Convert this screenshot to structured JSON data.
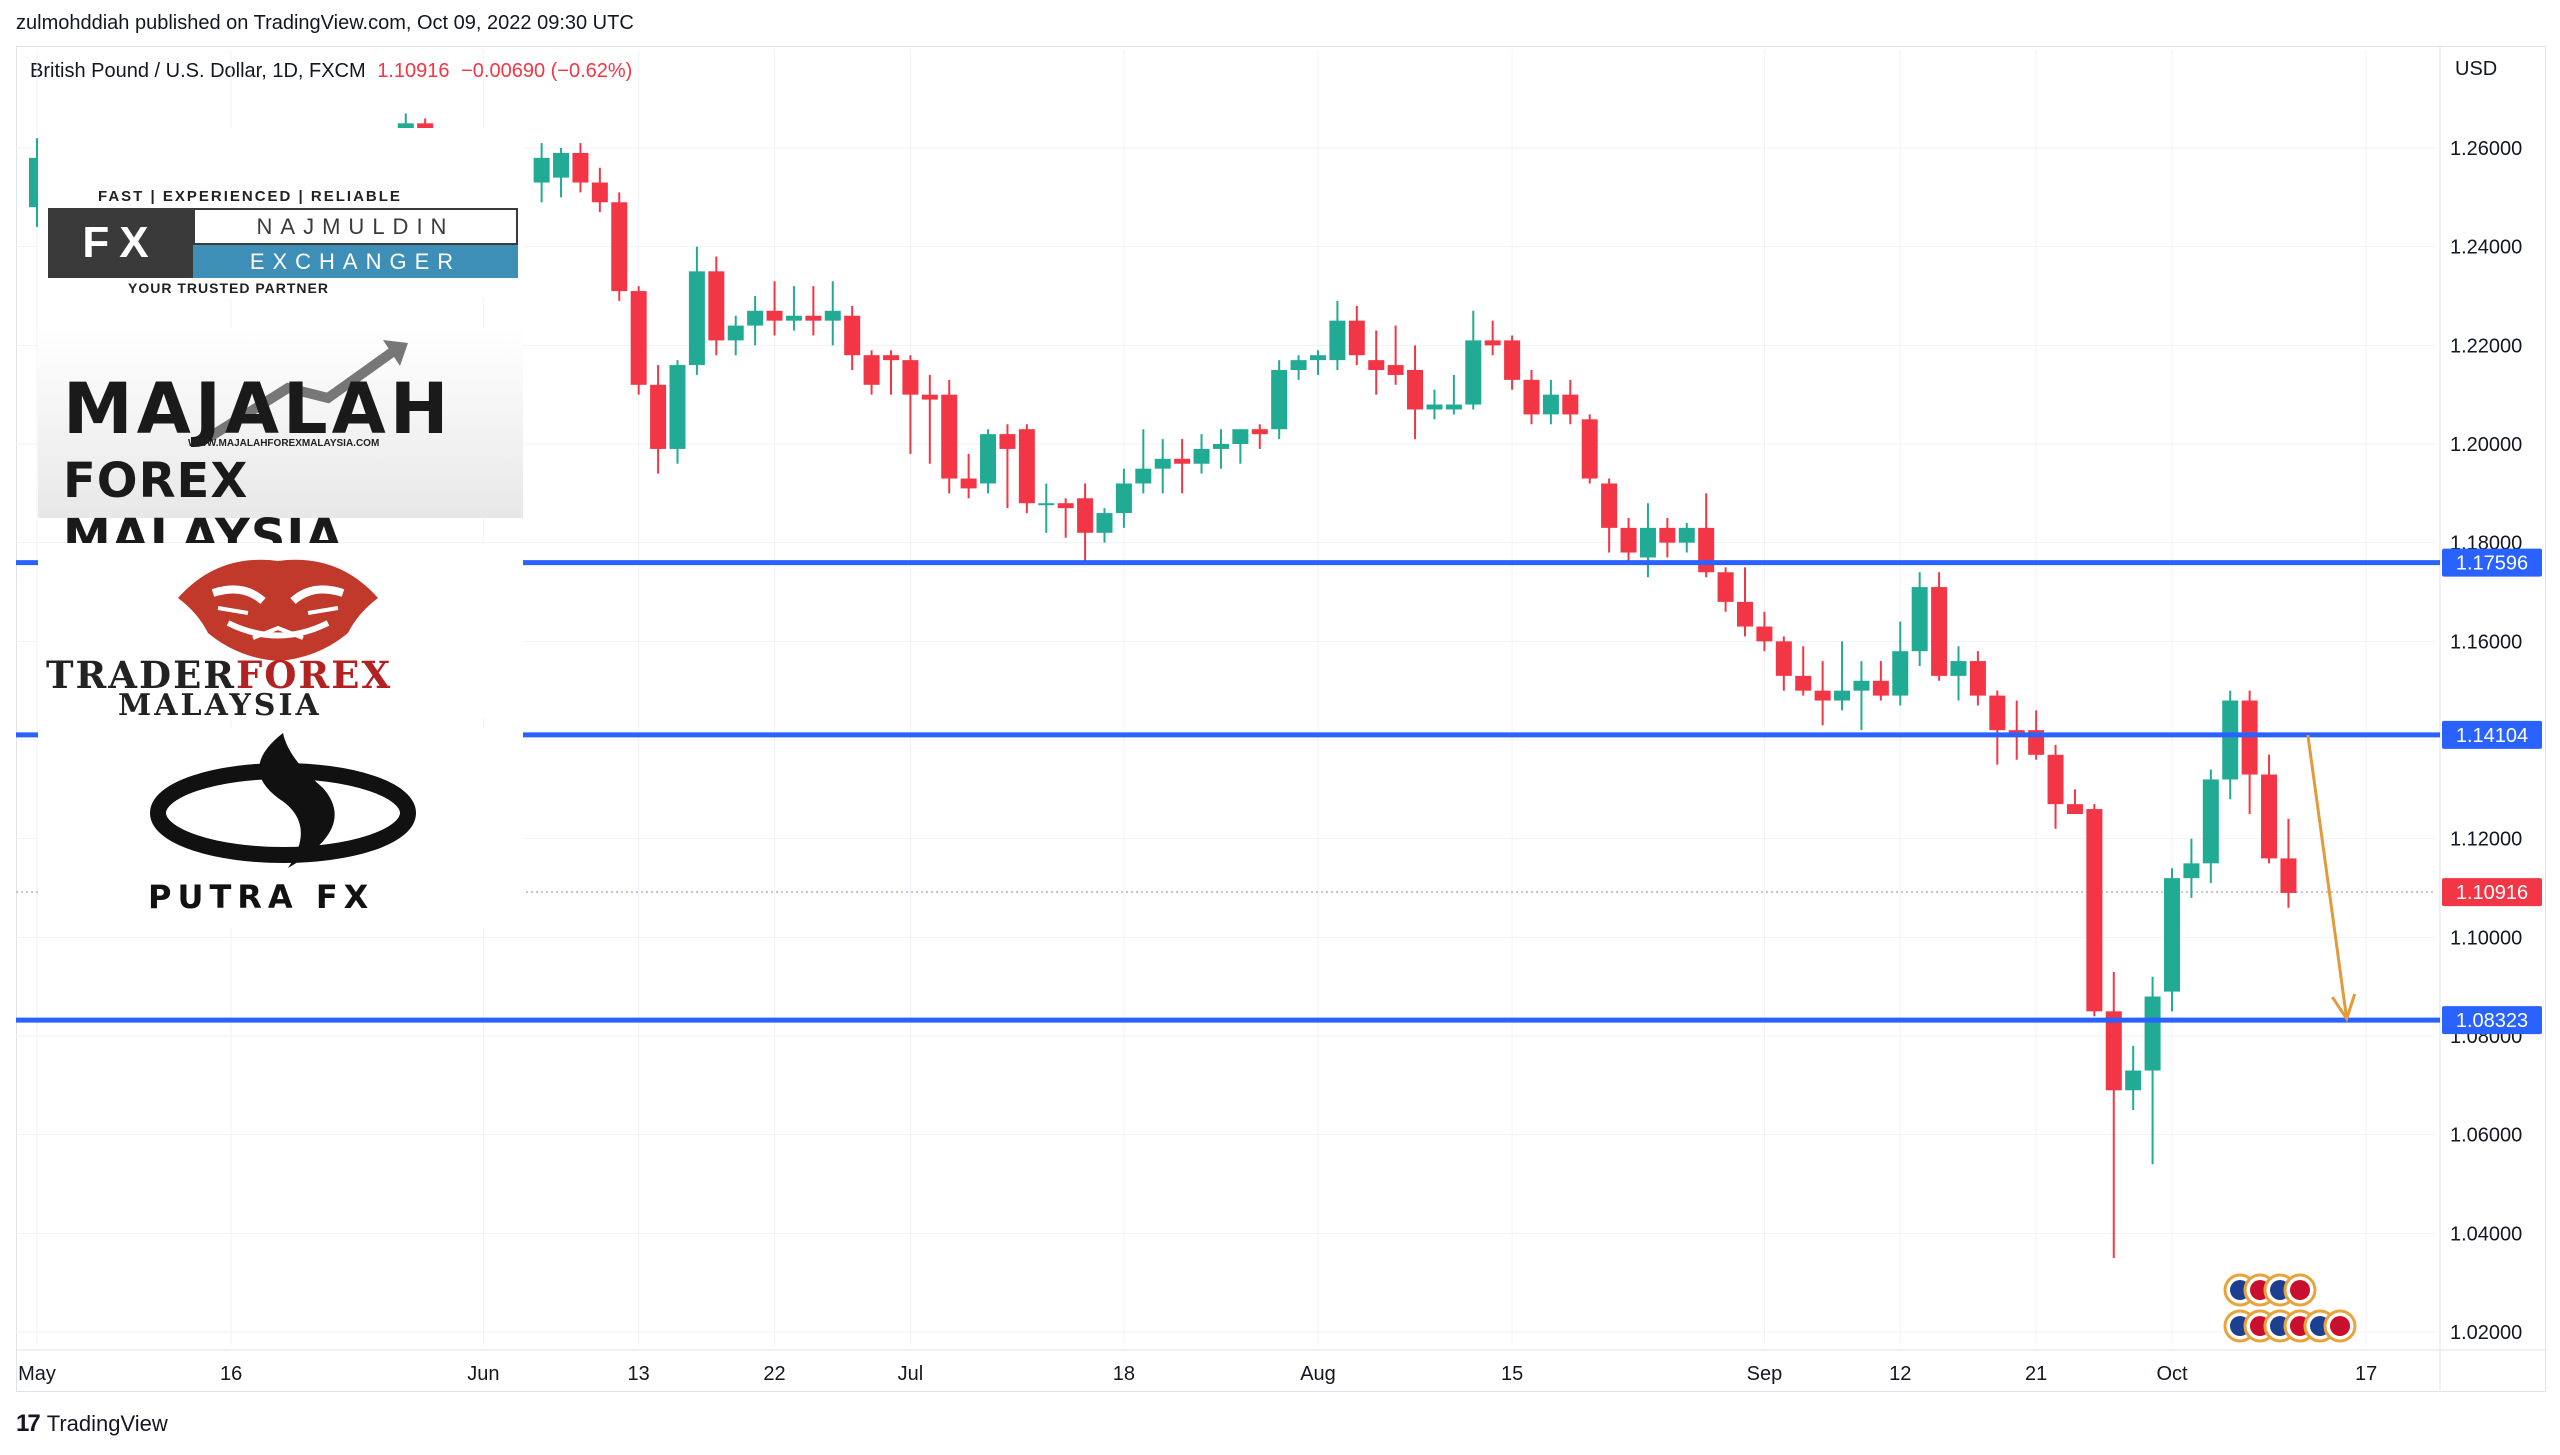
{
  "publisher": "zulmohddiah published on TradingView.com, Oct 09, 2022 09:30 UTC",
  "symbol": {
    "name": "British Pound / U.S. Dollar, 1D, FXCM",
    "price": "1.10916",
    "change": "−0.00690 (−0.62%)"
  },
  "currency": "USD",
  "footer": {
    "brand": "TradingView",
    "logo_text": "17"
  },
  "colors": {
    "up": "#22ab94",
    "down": "#f23645",
    "level": "#2962ff",
    "arrow": "#e39a3b",
    "grid": "#f0f3fa"
  },
  "logos": {
    "fx": {
      "tagline": "FAST | EXPERIENCED | RELIABLE",
      "mark": "FX",
      "name_top": "NAJMULDIN",
      "name_bottom": "EXCHANGER",
      "sub": "YOUR TRUSTED PARTNER"
    },
    "majalah": {
      "top": "MAJALAH",
      "url": "WWW.MAJALAHFOREXMALAYSIA.COM",
      "bottom": "FOREX  MALAYSIA"
    },
    "trader": {
      "line1a": "TRADER",
      "line1b": "FOREX",
      "line2": "MALAYSIA"
    },
    "putra": {
      "text": "PUTRA FX"
    }
  },
  "chart_data": {
    "type": "candlestick",
    "ylim": [
      1.018,
      1.273
    ],
    "y_ticks": [
      "1.26000",
      "1.24000",
      "1.22000",
      "1.20000",
      "1.18000",
      "1.16000",
      "1.14000",
      "1.12000",
      "1.10000",
      "1.08000",
      "1.06000",
      "1.04000",
      "1.02000"
    ],
    "x_ticks": [
      {
        "label": "May",
        "i": 0
      },
      {
        "label": "16",
        "i": 10
      },
      {
        "label": "Jun",
        "i": 23
      },
      {
        "label": "13",
        "i": 31
      },
      {
        "label": "22",
        "i": 38
      },
      {
        "label": "Jul",
        "i": 45
      },
      {
        "label": "18",
        "i": 56
      },
      {
        "label": "Aug",
        "i": 66
      },
      {
        "label": "15",
        "i": 76
      },
      {
        "label": "Sep",
        "i": 89
      },
      {
        "label": "12",
        "i": 96
      },
      {
        "label": "21",
        "i": 103
      },
      {
        "label": "Oct",
        "i": 110
      },
      {
        "label": "17",
        "i": 120
      }
    ],
    "horizontal_levels": [
      {
        "value": 1.17596,
        "label": "1.17596"
      },
      {
        "value": 1.14104,
        "label": "1.14104"
      },
      {
        "value": 1.08323,
        "label": "1.08323"
      }
    ],
    "last_price": {
      "value": 1.10916,
      "label": "1.10916"
    },
    "projection_arrow": {
      "from_i": 117,
      "from_price": 1.141,
      "to_i": 119,
      "to_price": 1.0835
    },
    "candles": [
      {
        "i": 0,
        "o": 1.248,
        "h": 1.262,
        "l": 1.244,
        "c": 1.258
      },
      {
        "i": 1,
        "o": 1.258,
        "h": 1.264,
        "l": 1.252,
        "c": 1.255
      },
      {
        "i": 19,
        "o": 1.26,
        "h": 1.267,
        "l": 1.256,
        "c": 1.265
      },
      {
        "i": 20,
        "o": 1.265,
        "h": 1.266,
        "l": 1.26,
        "c": 1.263
      },
      {
        "i": 26,
        "o": 1.253,
        "h": 1.261,
        "l": 1.249,
        "c": 1.258
      },
      {
        "i": 27,
        "o": 1.254,
        "h": 1.26,
        "l": 1.25,
        "c": 1.259
      },
      {
        "i": 28,
        "o": 1.259,
        "h": 1.261,
        "l": 1.251,
        "c": 1.253
      },
      {
        "i": 29,
        "o": 1.253,
        "h": 1.256,
        "l": 1.247,
        "c": 1.249
      },
      {
        "i": 30,
        "o": 1.249,
        "h": 1.251,
        "l": 1.229,
        "c": 1.231
      },
      {
        "i": 31,
        "o": 1.231,
        "h": 1.232,
        "l": 1.21,
        "c": 1.212
      },
      {
        "i": 32,
        "o": 1.212,
        "h": 1.216,
        "l": 1.194,
        "c": 1.199
      },
      {
        "i": 33,
        "o": 1.199,
        "h": 1.217,
        "l": 1.196,
        "c": 1.216
      },
      {
        "i": 34,
        "o": 1.216,
        "h": 1.24,
        "l": 1.214,
        "c": 1.235
      },
      {
        "i": 35,
        "o": 1.235,
        "h": 1.238,
        "l": 1.218,
        "c": 1.221
      },
      {
        "i": 36,
        "o": 1.221,
        "h": 1.226,
        "l": 1.218,
        "c": 1.224
      },
      {
        "i": 37,
        "o": 1.224,
        "h": 1.23,
        "l": 1.22,
        "c": 1.227
      },
      {
        "i": 38,
        "o": 1.227,
        "h": 1.233,
        "l": 1.222,
        "c": 1.225
      },
      {
        "i": 39,
        "o": 1.225,
        "h": 1.232,
        "l": 1.223,
        "c": 1.226
      },
      {
        "i": 40,
        "o": 1.226,
        "h": 1.232,
        "l": 1.222,
        "c": 1.225
      },
      {
        "i": 41,
        "o": 1.225,
        "h": 1.233,
        "l": 1.22,
        "c": 1.227
      },
      {
        "i": 42,
        "o": 1.226,
        "h": 1.228,
        "l": 1.215,
        "c": 1.218
      },
      {
        "i": 43,
        "o": 1.218,
        "h": 1.219,
        "l": 1.21,
        "c": 1.212
      },
      {
        "i": 44,
        "o": 1.218,
        "h": 1.219,
        "l": 1.21,
        "c": 1.217
      },
      {
        "i": 45,
        "o": 1.217,
        "h": 1.218,
        "l": 1.198,
        "c": 1.21
      },
      {
        "i": 46,
        "o": 1.21,
        "h": 1.214,
        "l": 1.196,
        "c": 1.209
      },
      {
        "i": 47,
        "o": 1.21,
        "h": 1.213,
        "l": 1.19,
        "c": 1.193
      },
      {
        "i": 48,
        "o": 1.193,
        "h": 1.198,
        "l": 1.189,
        "c": 1.191
      },
      {
        "i": 49,
        "o": 1.192,
        "h": 1.203,
        "l": 1.19,
        "c": 1.202
      },
      {
        "i": 50,
        "o": 1.202,
        "h": 1.204,
        "l": 1.187,
        "c": 1.199
      },
      {
        "i": 51,
        "o": 1.203,
        "h": 1.204,
        "l": 1.186,
        "c": 1.188
      },
      {
        "i": 52,
        "o": 1.188,
        "h": 1.192,
        "l": 1.182,
        "c": 1.188
      },
      {
        "i": 53,
        "o": 1.188,
        "h": 1.189,
        "l": 1.181,
        "c": 1.187
      },
      {
        "i": 54,
        "o": 1.189,
        "h": 1.192,
        "l": 1.176,
        "c": 1.182
      },
      {
        "i": 55,
        "o": 1.182,
        "h": 1.187,
        "l": 1.18,
        "c": 1.186
      },
      {
        "i": 56,
        "o": 1.186,
        "h": 1.195,
        "l": 1.183,
        "c": 1.192
      },
      {
        "i": 57,
        "o": 1.192,
        "h": 1.203,
        "l": 1.19,
        "c": 1.195
      },
      {
        "i": 58,
        "o": 1.195,
        "h": 1.201,
        "l": 1.19,
        "c": 1.197
      },
      {
        "i": 59,
        "o": 1.197,
        "h": 1.201,
        "l": 1.19,
        "c": 1.196
      },
      {
        "i": 60,
        "o": 1.196,
        "h": 1.202,
        "l": 1.194,
        "c": 1.199
      },
      {
        "i": 61,
        "o": 1.199,
        "h": 1.203,
        "l": 1.195,
        "c": 1.2
      },
      {
        "i": 62,
        "o": 1.2,
        "h": 1.203,
        "l": 1.196,
        "c": 1.203
      },
      {
        "i": 63,
        "o": 1.203,
        "h": 1.204,
        "l": 1.199,
        "c": 1.202
      },
      {
        "i": 64,
        "o": 1.203,
        "h": 1.217,
        "l": 1.201,
        "c": 1.215
      },
      {
        "i": 65,
        "o": 1.215,
        "h": 1.218,
        "l": 1.213,
        "c": 1.217
      },
      {
        "i": 66,
        "o": 1.217,
        "h": 1.219,
        "l": 1.214,
        "c": 1.218
      },
      {
        "i": 67,
        "o": 1.217,
        "h": 1.229,
        "l": 1.215,
        "c": 1.225
      },
      {
        "i": 68,
        "o": 1.225,
        "h": 1.228,
        "l": 1.216,
        "c": 1.218
      },
      {
        "i": 69,
        "o": 1.217,
        "h": 1.223,
        "l": 1.21,
        "c": 1.215
      },
      {
        "i": 70,
        "o": 1.216,
        "h": 1.224,
        "l": 1.212,
        "c": 1.214
      },
      {
        "i": 71,
        "o": 1.215,
        "h": 1.22,
        "l": 1.201,
        "c": 1.207
      },
      {
        "i": 72,
        "o": 1.207,
        "h": 1.211,
        "l": 1.205,
        "c": 1.208
      },
      {
        "i": 73,
        "o": 1.207,
        "h": 1.214,
        "l": 1.206,
        "c": 1.208
      },
      {
        "i": 74,
        "o": 1.208,
        "h": 1.227,
        "l": 1.207,
        "c": 1.221
      },
      {
        "i": 75,
        "o": 1.221,
        "h": 1.225,
        "l": 1.218,
        "c": 1.22
      },
      {
        "i": 76,
        "o": 1.221,
        "h": 1.222,
        "l": 1.211,
        "c": 1.213
      },
      {
        "i": 77,
        "o": 1.213,
        "h": 1.215,
        "l": 1.204,
        "c": 1.206
      },
      {
        "i": 78,
        "o": 1.206,
        "h": 1.213,
        "l": 1.204,
        "c": 1.21
      },
      {
        "i": 79,
        "o": 1.21,
        "h": 1.213,
        "l": 1.204,
        "c": 1.206
      },
      {
        "i": 80,
        "o": 1.205,
        "h": 1.206,
        "l": 1.192,
        "c": 1.193
      },
      {
        "i": 81,
        "o": 1.192,
        "h": 1.193,
        "l": 1.178,
        "c": 1.183
      },
      {
        "i": 82,
        "o": 1.183,
        "h": 1.185,
        "l": 1.176,
        "c": 1.178
      },
      {
        "i": 83,
        "o": 1.177,
        "h": 1.188,
        "l": 1.173,
        "c": 1.183
      },
      {
        "i": 84,
        "o": 1.183,
        "h": 1.185,
        "l": 1.177,
        "c": 1.18
      },
      {
        "i": 85,
        "o": 1.18,
        "h": 1.184,
        "l": 1.178,
        "c": 1.183
      },
      {
        "i": 86,
        "o": 1.183,
        "h": 1.19,
        "l": 1.173,
        "c": 1.174
      },
      {
        "i": 87,
        "o": 1.174,
        "h": 1.175,
        "l": 1.166,
        "c": 1.168
      },
      {
        "i": 88,
        "o": 1.168,
        "h": 1.175,
        "l": 1.161,
        "c": 1.163
      },
      {
        "i": 89,
        "o": 1.163,
        "h": 1.166,
        "l": 1.158,
        "c": 1.16
      },
      {
        "i": 90,
        "o": 1.16,
        "h": 1.161,
        "l": 1.15,
        "c": 1.153
      },
      {
        "i": 91,
        "o": 1.153,
        "h": 1.159,
        "l": 1.149,
        "c": 1.15
      },
      {
        "i": 92,
        "o": 1.15,
        "h": 1.156,
        "l": 1.143,
        "c": 1.148
      },
      {
        "i": 93,
        "o": 1.148,
        "h": 1.16,
        "l": 1.146,
        "c": 1.15
      },
      {
        "i": 94,
        "o": 1.15,
        "h": 1.156,
        "l": 1.142,
        "c": 1.152
      },
      {
        "i": 95,
        "o": 1.152,
        "h": 1.156,
        "l": 1.148,
        "c": 1.149
      },
      {
        "i": 96,
        "o": 1.149,
        "h": 1.164,
        "l": 1.147,
        "c": 1.158
      },
      {
        "i": 97,
        "o": 1.158,
        "h": 1.174,
        "l": 1.155,
        "c": 1.171
      },
      {
        "i": 98,
        "o": 1.171,
        "h": 1.174,
        "l": 1.152,
        "c": 1.153
      },
      {
        "i": 99,
        "o": 1.153,
        "h": 1.159,
        "l": 1.148,
        "c": 1.156
      },
      {
        "i": 100,
        "o": 1.156,
        "h": 1.158,
        "l": 1.147,
        "c": 1.149
      },
      {
        "i": 101,
        "o": 1.149,
        "h": 1.15,
        "l": 1.135,
        "c": 1.142
      },
      {
        "i": 102,
        "o": 1.142,
        "h": 1.148,
        "l": 1.136,
        "c": 1.141
      },
      {
        "i": 103,
        "o": 1.142,
        "h": 1.146,
        "l": 1.136,
        "c": 1.137
      },
      {
        "i": 104,
        "o": 1.137,
        "h": 1.139,
        "l": 1.122,
        "c": 1.127
      },
      {
        "i": 105,
        "o": 1.127,
        "h": 1.13,
        "l": 1.125,
        "c": 1.125
      },
      {
        "i": 106,
        "o": 1.126,
        "h": 1.127,
        "l": 1.084,
        "c": 1.085
      },
      {
        "i": 107,
        "o": 1.085,
        "h": 1.093,
        "l": 1.035,
        "c": 1.069
      },
      {
        "i": 108,
        "o": 1.069,
        "h": 1.078,
        "l": 1.065,
        "c": 1.073
      },
      {
        "i": 109,
        "o": 1.073,
        "h": 1.092,
        "l": 1.054,
        "c": 1.088
      },
      {
        "i": 110,
        "o": 1.089,
        "h": 1.114,
        "l": 1.085,
        "c": 1.112
      },
      {
        "i": 111,
        "o": 1.112,
        "h": 1.12,
        "l": 1.108,
        "c": 1.115
      },
      {
        "i": 112,
        "o": 1.115,
        "h": 1.134,
        "l": 1.111,
        "c": 1.132
      },
      {
        "i": 113,
        "o": 1.132,
        "h": 1.15,
        "l": 1.128,
        "c": 1.148
      },
      {
        "i": 114,
        "o": 1.148,
        "h": 1.15,
        "l": 1.125,
        "c": 1.133
      },
      {
        "i": 115,
        "o": 1.133,
        "h": 1.137,
        "l": 1.115,
        "c": 1.116
      },
      {
        "i": 116,
        "o": 1.116,
        "h": 1.124,
        "l": 1.106,
        "c": 1.109
      }
    ]
  }
}
